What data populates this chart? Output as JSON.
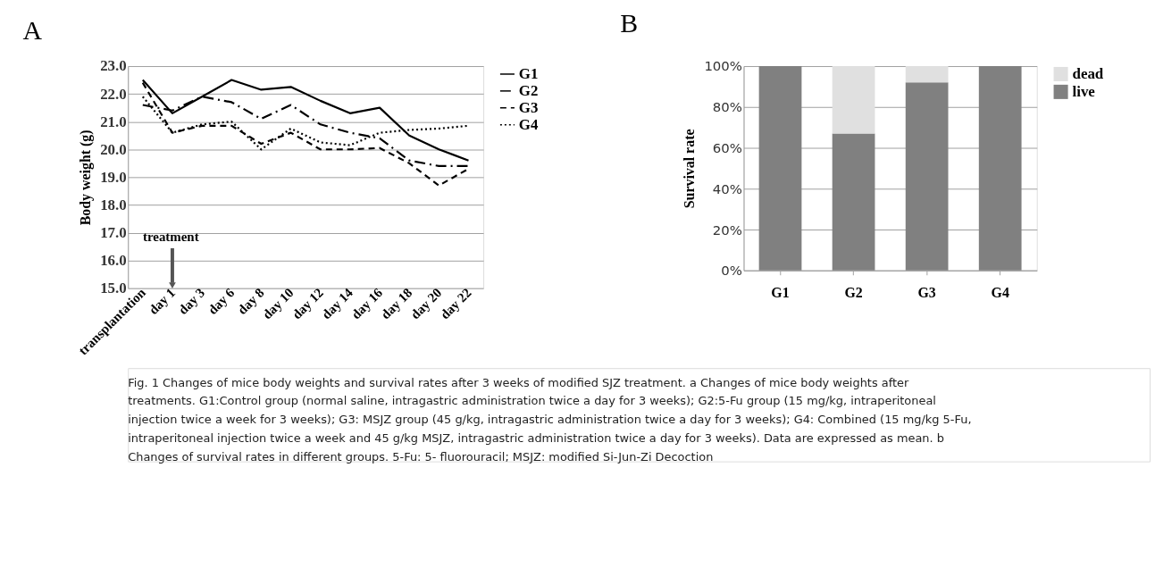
{
  "chart_data": [
    {
      "type": "line",
      "title": "A",
      "ylabel": "Body weight (g)",
      "categories": [
        "transplantation",
        "day 1",
        "day 3",
        "day 6",
        "day 8",
        "day 10",
        "day 12",
        "day 14",
        "day 16",
        "day 18",
        "day 20",
        "day 22"
      ],
      "series": [
        {
          "name": "G1",
          "color": "#000000",
          "line_style": "solid",
          "values": [
            22.5,
            21.3,
            21.9,
            22.5,
            22.15,
            22.25,
            21.75,
            21.3,
            21.5,
            20.5,
            20.0,
            19.6
          ]
        },
        {
          "name": "G2",
          "color": "#000000",
          "line_style": "longdash",
          "values": [
            21.6,
            21.4,
            21.9,
            21.7,
            21.1,
            21.6,
            20.9,
            20.6,
            20.4,
            19.6,
            19.4,
            19.4
          ]
        },
        {
          "name": "G3",
          "color": "#000000",
          "line_style": "dashed",
          "values": [
            22.4,
            20.6,
            20.85,
            20.85,
            20.2,
            20.6,
            20.0,
            20.0,
            20.05,
            19.5,
            18.7,
            19.3
          ]
        },
        {
          "name": "G4",
          "color": "#000000",
          "line_style": "dotted",
          "values": [
            21.9,
            20.6,
            20.9,
            21.0,
            20.0,
            20.75,
            20.25,
            20.15,
            20.6,
            20.7,
            20.75,
            20.85
          ]
        }
      ],
      "ylim": [
        15,
        23
      ],
      "yticks": [
        {
          "value": 15,
          "label": "15.0"
        },
        {
          "value": 16,
          "label": "16.0"
        },
        {
          "value": 17,
          "label": "17.0"
        },
        {
          "value": 18,
          "label": "18.0"
        },
        {
          "value": 19,
          "label": "19.0"
        },
        {
          "value": 20,
          "label": "20.0"
        },
        {
          "value": 21,
          "label": "21.0"
        },
        {
          "value": 22,
          "label": "22.0"
        },
        {
          "value": 23,
          "label": "23.0"
        }
      ],
      "grid": "y",
      "legend": "right",
      "annotations": [
        "treatment",
        "Fig. 1 Changes of mice body weights and survival rates after 3 weeks of modified SJZ treatment. a Changes of mice body weights after",
        "treatments. G1:Control group (normal saline, intragastric administration twice a day for 3 weeks); G2:5-Fu group (15 mg/kg, intraperitoneal",
        "injection twice a week for 3 weeks); G3: MSJZ group (45 g/kg, intragastric administration twice a day for 3 weeks); G4: Combined (15 mg/kg 5-Fu,",
        "intraperitoneal injection twice a week and 45 g/kg MSJZ, intragastric administration twice a day for 3 weeks). Data are expressed as mean. b",
        "Changes of survival rates in different groups. 5-Fu: 5- fluorouracil; MSJZ: modified Si-Jun-Zi Decoction"
      ]
    },
    {
      "type": "bar",
      "title": "B",
      "ylabel": "Survival rate",
      "stacked": true,
      "categories": [
        "G1",
        "G2",
        "G3",
        "G4"
      ],
      "series": [
        {
          "name": "live",
          "color": "#808080",
          "values": [
            100,
            67,
            92,
            100
          ]
        },
        {
          "name": "dead",
          "color": "#e0e0e0",
          "values": [
            0,
            33,
            8,
            0
          ]
        }
      ],
      "ylim": [
        0,
        100
      ],
      "yticks": [
        {
          "value": 0,
          "label": "0%"
        },
        {
          "value": 20,
          "label": "20%"
        },
        {
          "value": 40,
          "label": "40%"
        },
        {
          "value": 60,
          "label": "60%"
        },
        {
          "value": 80,
          "label": "80%"
        },
        {
          "value": 100,
          "label": "100%"
        }
      ],
      "grid": "y",
      "legend": "right"
    }
  ]
}
